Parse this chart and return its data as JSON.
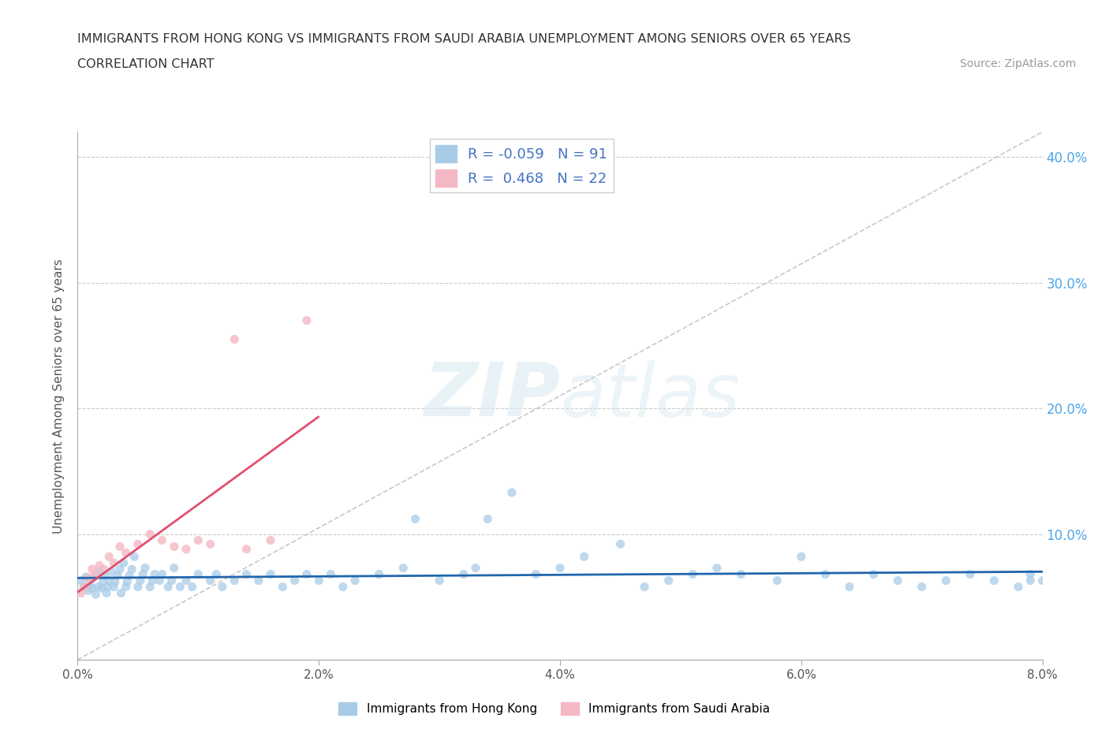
{
  "title_line1": "IMMIGRANTS FROM HONG KONG VS IMMIGRANTS FROM SAUDI ARABIA UNEMPLOYMENT AMONG SENIORS OVER 65 YEARS",
  "title_line2": "CORRELATION CHART",
  "source_text": "Source: ZipAtlas.com",
  "ylabel": "Unemployment Among Seniors over 65 years",
  "legend_label1": "Immigrants from Hong Kong",
  "legend_label2": "Immigrants from Saudi Arabia",
  "R1": -0.059,
  "N1": 91,
  "R2": 0.468,
  "N2": 22,
  "color_hk": "#a8cce8",
  "color_sa": "#f4b8c4",
  "trendline_color_hk": "#2166ac",
  "trendline_color_sa": "#e05070",
  "refline_color": "#c8c8c8",
  "xlim": [
    0.0,
    0.08
  ],
  "ylim": [
    0.0,
    0.42
  ],
  "xticks": [
    0.0,
    0.02,
    0.04,
    0.06,
    0.08
  ],
  "yticks": [
    0.0,
    0.1,
    0.2,
    0.3,
    0.4
  ],
  "xtick_labels": [
    "0.0%",
    "2.0%",
    "4.0%",
    "6.0%",
    "8.0%"
  ],
  "right_ytick_labels": [
    "",
    "10.0%",
    "20.0%",
    "30.0%",
    "40.0%"
  ],
  "watermark_zip": "ZIP",
  "watermark_atlas": "atlas",
  "hk_x": [
    0.0003,
    0.0005,
    0.0007,
    0.0009,
    0.001,
    0.0012,
    0.0013,
    0.0015,
    0.0017,
    0.0018,
    0.002,
    0.0021,
    0.0022,
    0.0024,
    0.0025,
    0.0026,
    0.0028,
    0.003,
    0.0031,
    0.0033,
    0.0035,
    0.0036,
    0.0038,
    0.004,
    0.0041,
    0.0043,
    0.0045,
    0.0047,
    0.005,
    0.0052,
    0.0054,
    0.0056,
    0.006,
    0.0062,
    0.0064,
    0.0068,
    0.007,
    0.0075,
    0.0078,
    0.008,
    0.0085,
    0.009,
    0.0095,
    0.01,
    0.011,
    0.0115,
    0.012,
    0.013,
    0.014,
    0.015,
    0.016,
    0.017,
    0.018,
    0.019,
    0.02,
    0.021,
    0.022,
    0.023,
    0.025,
    0.027,
    0.028,
    0.03,
    0.032,
    0.033,
    0.034,
    0.036,
    0.038,
    0.04,
    0.042,
    0.045,
    0.047,
    0.049,
    0.051,
    0.053,
    0.055,
    0.058,
    0.06,
    0.062,
    0.064,
    0.066,
    0.068,
    0.07,
    0.072,
    0.074,
    0.076,
    0.078,
    0.079,
    0.08,
    0.081,
    0.082,
    0.079
  ],
  "hk_y": [
    0.063,
    0.058,
    0.066,
    0.055,
    0.06,
    0.057,
    0.065,
    0.052,
    0.058,
    0.07,
    0.057,
    0.062,
    0.067,
    0.053,
    0.058,
    0.063,
    0.07,
    0.058,
    0.062,
    0.067,
    0.072,
    0.053,
    0.077,
    0.058,
    0.062,
    0.067,
    0.072,
    0.082,
    0.058,
    0.063,
    0.068,
    0.073,
    0.058,
    0.063,
    0.068,
    0.063,
    0.068,
    0.058,
    0.063,
    0.073,
    0.058,
    0.063,
    0.058,
    0.068,
    0.063,
    0.068,
    0.058,
    0.063,
    0.068,
    0.063,
    0.068,
    0.058,
    0.063,
    0.068,
    0.063,
    0.068,
    0.058,
    0.063,
    0.068,
    0.073,
    0.112,
    0.063,
    0.068,
    0.073,
    0.112,
    0.133,
    0.068,
    0.073,
    0.082,
    0.092,
    0.058,
    0.063,
    0.068,
    0.073,
    0.068,
    0.063,
    0.082,
    0.068,
    0.058,
    0.068,
    0.063,
    0.058,
    0.063,
    0.068,
    0.063,
    0.058,
    0.068,
    0.063,
    0.058,
    0.068,
    0.063
  ],
  "sa_x": [
    0.0003,
    0.0006,
    0.0009,
    0.0012,
    0.0015,
    0.0018,
    0.0022,
    0.0026,
    0.003,
    0.0035,
    0.004,
    0.005,
    0.006,
    0.007,
    0.008,
    0.009,
    0.01,
    0.011,
    0.013,
    0.014,
    0.016,
    0.019
  ],
  "sa_y": [
    0.053,
    0.058,
    0.065,
    0.072,
    0.068,
    0.075,
    0.072,
    0.082,
    0.077,
    0.09,
    0.085,
    0.092,
    0.1,
    0.095,
    0.09,
    0.088,
    0.095,
    0.092,
    0.255,
    0.088,
    0.095,
    0.27
  ]
}
